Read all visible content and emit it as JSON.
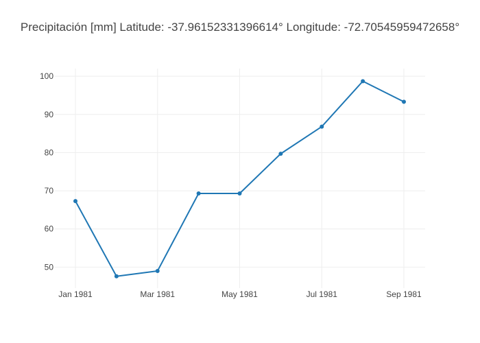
{
  "chart_data": {
    "type": "line",
    "title": "Precipitación [mm]   Latitude: -37.96152331396614° Longitude: -72.70545959472658°",
    "xlabel": "",
    "ylabel": "",
    "x": [
      "1981-01",
      "1981-02",
      "1981-03",
      "1981-04",
      "1981-05",
      "1981-06",
      "1981-07",
      "1981-08",
      "1981-09"
    ],
    "series": [
      {
        "values": [
          67.3,
          47.6,
          49.0,
          69.3,
          69.3,
          79.7,
          86.8,
          98.7,
          93.3
        ],
        "color": "#1f77b4"
      }
    ],
    "ylim": [
      44.5,
      102
    ],
    "y_ticks": [
      50,
      60,
      70,
      80,
      90,
      100
    ],
    "x_ticks": [
      {
        "x": "1981-01",
        "label": "Jan 1981"
      },
      {
        "x": "1981-03",
        "label": "Mar 1981"
      },
      {
        "x": "1981-05",
        "label": "May 1981"
      },
      {
        "x": "1981-07",
        "label": "Jul 1981"
      },
      {
        "x": "1981-09",
        "label": "Sep 1981"
      }
    ],
    "grid": true,
    "legend": "none"
  }
}
